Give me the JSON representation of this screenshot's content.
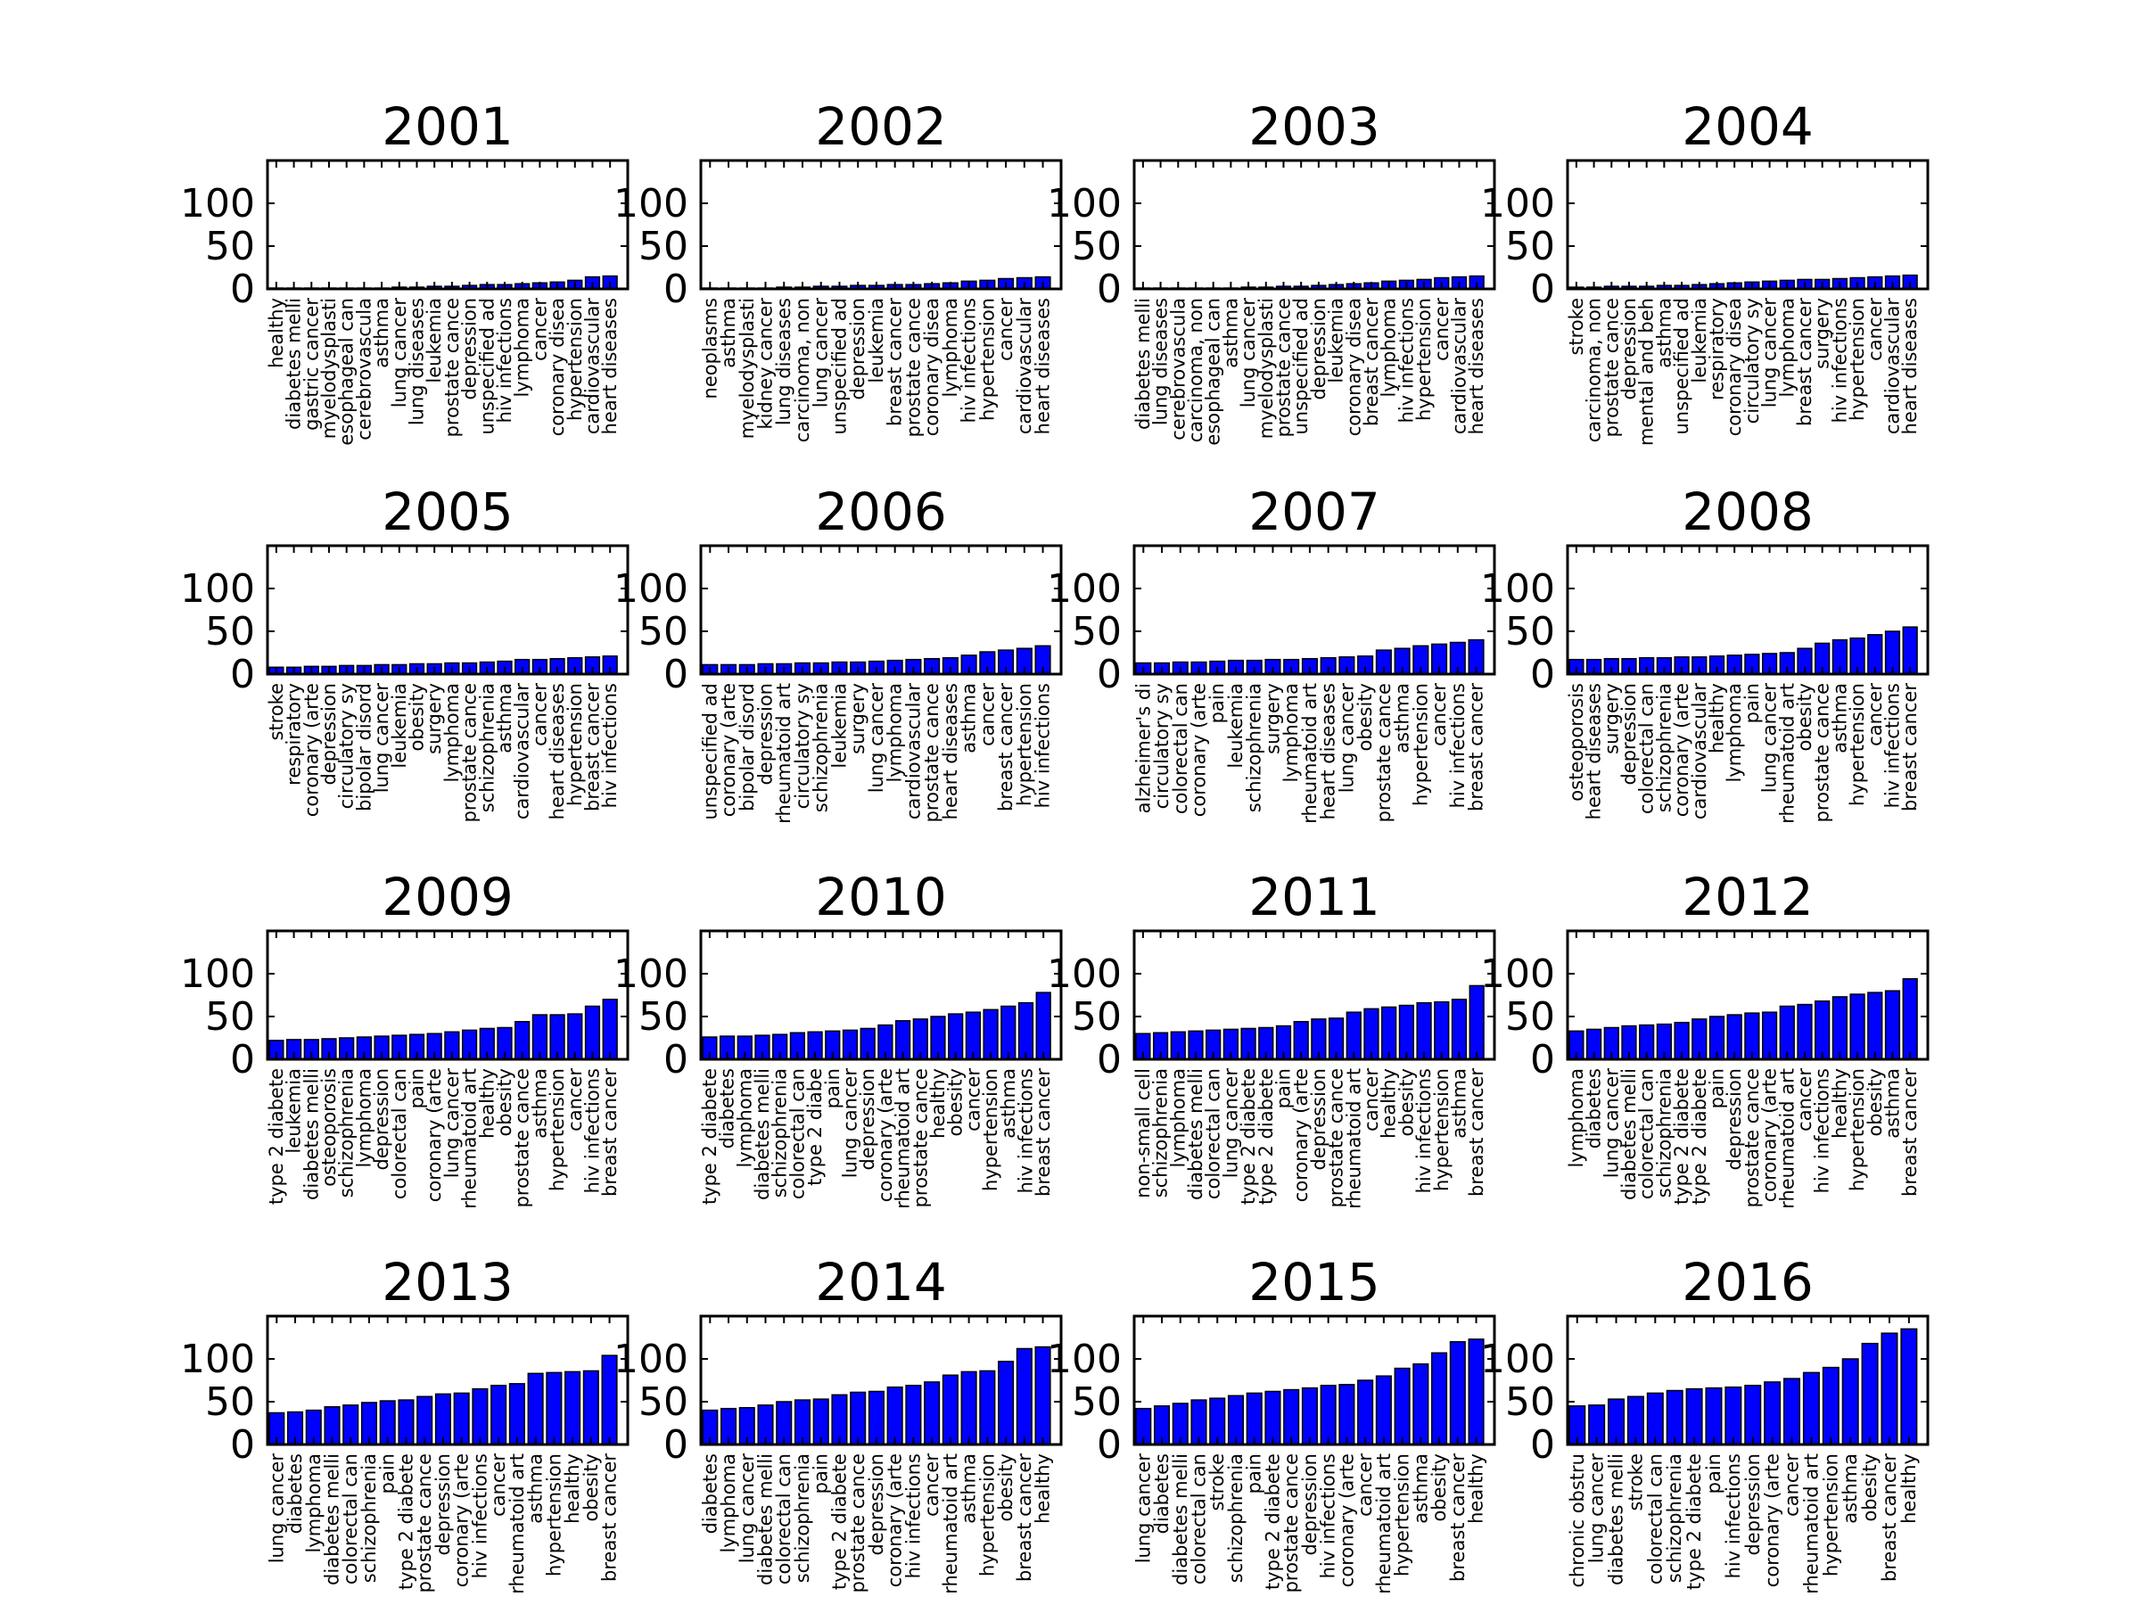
{
  "chart_data": [
    {
      "type": "bar",
      "title": "2001",
      "ylim": [
        0,
        150
      ],
      "yticks": [
        0,
        50,
        100
      ],
      "categories": [
        "healthy",
        "diabetes melli",
        "gastric cancer",
        "myelodysplasti",
        "esophageal can",
        "cerebrovascula",
        "asthma",
        "lung cancer",
        "lung diseases",
        "leukemia",
        "prostate cance",
        "depression",
        "unspecified ad",
        "hiv infections",
        "lymphoma",
        "cancer",
        "coronary disea",
        "hypertension",
        "cardiovascular",
        "heart diseases"
      ],
      "values": [
        1,
        1,
        1,
        1,
        1,
        1,
        1,
        2,
        2,
        3,
        3,
        4,
        5,
        5,
        6,
        7,
        8,
        10,
        14,
        15
      ]
    },
    {
      "type": "bar",
      "title": "2002",
      "ylim": [
        0,
        150
      ],
      "yticks": [
        0,
        50,
        100
      ],
      "categories": [
        "neoplasms",
        "asthma",
        "myelodysplasti",
        "kidney cancer",
        "lung diseases",
        "carcinoma, non",
        "lung cancer",
        "unspecified ad",
        "depression",
        "leukemia",
        "breast cancer",
        "prostate cance",
        "coronary disea",
        "lymphoma",
        "hiv infections",
        "hypertension",
        "cancer",
        "cardiovascular",
        "heart diseases"
      ],
      "values": [
        1,
        1,
        1,
        1,
        2,
        2,
        3,
        3,
        4,
        4,
        5,
        5,
        6,
        7,
        9,
        10,
        12,
        13,
        14
      ]
    },
    {
      "type": "bar",
      "title": "2003",
      "ylim": [
        0,
        150
      ],
      "yticks": [
        0,
        50,
        100
      ],
      "categories": [
        "diabetes melli",
        "lung diseases",
        "cerebrovascula",
        "carcinoma, non",
        "esophageal can",
        "asthma",
        "lung cancer",
        "myelodysplasti",
        "prostate cance",
        "unspecified ad",
        "depression",
        "leukemia",
        "coronary disea",
        "breast cancer",
        "lymphoma",
        "hiv infections",
        "hypertension",
        "cancer",
        "cardiovascular",
        "heart diseases"
      ],
      "values": [
        1,
        1,
        1,
        1,
        1,
        1,
        2,
        2,
        3,
        3,
        4,
        5,
        6,
        7,
        9,
        10,
        11,
        13,
        14,
        15
      ]
    },
    {
      "type": "bar",
      "title": "2004",
      "ylim": [
        0,
        150
      ],
      "yticks": [
        0,
        50,
        100
      ],
      "categories": [
        "stroke",
        "carcinoma, non",
        "prostate cance",
        "depression",
        "mental and beh",
        "asthma",
        "unspecified ad",
        "leukemia",
        "respiratory",
        "coronary disea",
        "circulatory sy",
        "lung cancer",
        "lymphoma",
        "breast cancer",
        "surgery",
        "hiv infections",
        "hypertension",
        "cancer",
        "cardiovascular",
        "heart diseases"
      ],
      "values": [
        2,
        2,
        3,
        3,
        3,
        4,
        4,
        5,
        6,
        7,
        8,
        9,
        10,
        11,
        11,
        12,
        13,
        14,
        15,
        16
      ]
    },
    {
      "type": "bar",
      "title": "2005",
      "ylim": [
        0,
        150
      ],
      "yticks": [
        0,
        50,
        100
      ],
      "categories": [
        "stroke",
        "respiratory",
        "coronary (arte",
        "depression",
        "circulatory sy",
        "bipolar disord",
        "lung cancer",
        "leukemia",
        "obesity",
        "surgery",
        "lymphoma",
        "prostate cance",
        "schizophrenia",
        "asthma",
        "cardiovascular",
        "cancer",
        "heart diseases",
        "hypertension",
        "breast cancer",
        "hiv infections"
      ],
      "values": [
        8,
        8,
        9,
        9,
        10,
        10,
        11,
        11,
        12,
        12,
        13,
        13,
        14,
        15,
        17,
        17,
        18,
        19,
        20,
        21
      ]
    },
    {
      "type": "bar",
      "title": "2006",
      "ylim": [
        0,
        150
      ],
      "yticks": [
        0,
        50,
        100
      ],
      "categories": [
        "unspecified ad",
        "coronary (arte",
        "bipolar disord",
        "depression",
        "rheumatoid art",
        "circulatory sy",
        "schizophrenia",
        "leukemia",
        "surgery",
        "lung cancer",
        "lymphoma",
        "cardiovascular",
        "prostate cance",
        "heart diseases",
        "asthma",
        "cancer",
        "breast cancer",
        "hypertension",
        "hiv infections"
      ],
      "values": [
        11,
        11,
        11,
        12,
        12,
        13,
        13,
        14,
        14,
        15,
        16,
        17,
        18,
        19,
        22,
        26,
        28,
        30,
        33
      ]
    },
    {
      "type": "bar",
      "title": "2007",
      "ylim": [
        0,
        150
      ],
      "yticks": [
        0,
        50,
        100
      ],
      "categories": [
        "alzheimer's di",
        "circulatory sy",
        "colorectal can",
        "coronary (arte",
        "pain",
        "leukemia",
        "schizophrenia",
        "surgery",
        "lymphoma",
        "rheumatoid art",
        "heart diseases",
        "lung cancer",
        "obesity",
        "prostate cance",
        "asthma",
        "hypertension",
        "cancer",
        "hiv infections",
        "breast cancer"
      ],
      "values": [
        13,
        13,
        14,
        14,
        15,
        16,
        16,
        17,
        17,
        18,
        19,
        20,
        21,
        28,
        30,
        33,
        35,
        37,
        40
      ]
    },
    {
      "type": "bar",
      "title": "2008",
      "ylim": [
        0,
        150
      ],
      "yticks": [
        0,
        50,
        100
      ],
      "categories": [
        "osteoporosis",
        "heart diseases",
        "surgery",
        "depression",
        "colorectal can",
        "schizophrenia",
        "coronary (arte",
        "cardiovascular",
        "healthy",
        "lymphoma",
        "pain",
        "lung cancer",
        "rheumatoid art",
        "obesity",
        "prostate cance",
        "asthma",
        "hypertension",
        "cancer",
        "hiv infections",
        "breast cancer"
      ],
      "values": [
        17,
        17,
        18,
        18,
        19,
        19,
        20,
        20,
        21,
        22,
        23,
        24,
        25,
        30,
        36,
        40,
        42,
        46,
        50,
        55
      ]
    },
    {
      "type": "bar",
      "title": "2009",
      "ylim": [
        0,
        150
      ],
      "yticks": [
        0,
        50,
        100
      ],
      "categories": [
        "type 2 diabete",
        "leukemia",
        "diabetes melli",
        "osteoporosis",
        "schizophrenia",
        "lymphoma",
        "depression",
        "colorectal can",
        "pain",
        "coronary (arte",
        "lung cancer",
        "rheumatoid art",
        "healthy",
        "obesity",
        "prostate cance",
        "asthma",
        "hypertension",
        "cancer",
        "hiv infections",
        "breast cancer"
      ],
      "values": [
        22,
        23,
        23,
        24,
        25,
        26,
        27,
        28,
        29,
        30,
        32,
        34,
        36,
        37,
        44,
        52,
        52,
        53,
        62,
        70
      ]
    },
    {
      "type": "bar",
      "title": "2010",
      "ylim": [
        0,
        150
      ],
      "yticks": [
        0,
        50,
        100
      ],
      "categories": [
        "type 2 diabete",
        "diabetes",
        "lymphoma",
        "diabetes melli",
        "schizophrenia",
        "colorectal can",
        "type 2 diabe",
        "pain",
        "lung cancer",
        "depression",
        "coronary (arte",
        "rheumatoid art",
        "prostate cance",
        "healthy",
        "obesity",
        "cancer",
        "hypertension",
        "asthma",
        "hiv infections",
        "breast cancer"
      ],
      "values": [
        26,
        27,
        27,
        28,
        29,
        31,
        32,
        33,
        34,
        36,
        40,
        45,
        47,
        50,
        53,
        55,
        58,
        62,
        66,
        78
      ]
    },
    {
      "type": "bar",
      "title": "2011",
      "ylim": [
        0,
        150
      ],
      "yticks": [
        0,
        50,
        100
      ],
      "categories": [
        "non-small cell",
        "schizophrenia",
        "lymphoma",
        "diabetes melli",
        "colorectal can",
        "lung cancer",
        "type 2 diabete",
        "type 2 diabete",
        "pain",
        "coronary (arte",
        "depression",
        "prostate cance",
        "rheumatoid art",
        "cancer",
        "healthy",
        "obesity",
        "hiv infections",
        "hypertension",
        "asthma",
        "breast cancer"
      ],
      "values": [
        30,
        31,
        32,
        33,
        34,
        35,
        36,
        37,
        39,
        44,
        47,
        48,
        55,
        59,
        61,
        63,
        66,
        67,
        70,
        86
      ]
    },
    {
      "type": "bar",
      "title": "2012",
      "ylim": [
        0,
        150
      ],
      "yticks": [
        0,
        50,
        100
      ],
      "categories": [
        "lymphoma",
        "diabetes",
        "lung cancer",
        "diabetes melli",
        "colorectal can",
        "schizophrenia",
        "type 2 diabete",
        "type 2 diabete",
        "pain",
        "depression",
        "prostate cance",
        "coronary (arte",
        "rheumatoid art",
        "cancer",
        "hiv infections",
        "healthy",
        "hypertension",
        "obesity",
        "asthma",
        "breast cancer"
      ],
      "values": [
        33,
        35,
        37,
        39,
        40,
        41,
        43,
        47,
        50,
        52,
        54,
        55,
        62,
        64,
        68,
        73,
        76,
        78,
        80,
        94
      ]
    },
    {
      "type": "bar",
      "title": "2013",
      "ylim": [
        0,
        150
      ],
      "yticks": [
        0,
        50,
        100
      ],
      "categories": [
        "lung cancer",
        "diabetes",
        "lymphoma",
        "diabetes melli",
        "colorectal can",
        "schizophrenia",
        "pain",
        "type 2 diabete",
        "prostate cance",
        "depression",
        "coronary (arte",
        "hiv infections",
        "cancer",
        "rheumatoid art",
        "asthma",
        "hypertension",
        "healthy",
        "obesity",
        "breast cancer"
      ],
      "values": [
        37,
        38,
        40,
        44,
        46,
        49,
        51,
        52,
        56,
        59,
        60,
        65,
        69,
        71,
        83,
        84,
        85,
        86,
        104
      ]
    },
    {
      "type": "bar",
      "title": "2014",
      "ylim": [
        0,
        150
      ],
      "yticks": [
        0,
        50,
        100
      ],
      "categories": [
        "diabetes",
        "lymphoma",
        "lung cancer",
        "diabetes melli",
        "colorectal can",
        "schizophrenia",
        "pain",
        "type 2 diabete",
        "prostate cance",
        "depression",
        "coronary (arte",
        "hiv infections",
        "cancer",
        "rheumatoid art",
        "asthma",
        "hypertension",
        "obesity",
        "breast cancer",
        "healthy"
      ],
      "values": [
        40,
        42,
        43,
        46,
        50,
        52,
        53,
        58,
        61,
        62,
        67,
        69,
        73,
        81,
        85,
        86,
        97,
        112,
        114
      ]
    },
    {
      "type": "bar",
      "title": "2015",
      "ylim": [
        0,
        150
      ],
      "yticks": [
        0,
        50,
        100
      ],
      "categories": [
        "lung cancer",
        "diabetes",
        "diabetes melli",
        "colorectal can",
        "stroke",
        "schizophrenia",
        "pain",
        "type 2 diabete",
        "prostate cance",
        "depression",
        "hiv infections",
        "coronary (arte",
        "cancer",
        "rheumatoid art",
        "hypertension",
        "asthma",
        "obesity",
        "breast cancer",
        "healthy"
      ],
      "values": [
        42,
        45,
        48,
        52,
        54,
        57,
        60,
        62,
        64,
        66,
        69,
        70,
        75,
        80,
        89,
        94,
        107,
        120,
        123
      ]
    },
    {
      "type": "bar",
      "title": "2016",
      "ylim": [
        0,
        150
      ],
      "yticks": [
        0,
        50,
        100
      ],
      "categories": [
        "chronic obstru",
        "lung cancer",
        "diabetes melli",
        "stroke",
        "colorectal can",
        "schizophrenia",
        "type 2 diabete",
        "pain",
        "hiv infections",
        "depression",
        "coronary (arte",
        "cancer",
        "rheumatoid art",
        "hypertension",
        "asthma",
        "obesity",
        "breast cancer",
        "healthy"
      ],
      "values": [
        45,
        46,
        53,
        56,
        60,
        63,
        65,
        66,
        67,
        69,
        73,
        77,
        84,
        90,
        100,
        118,
        130,
        135
      ]
    }
  ]
}
